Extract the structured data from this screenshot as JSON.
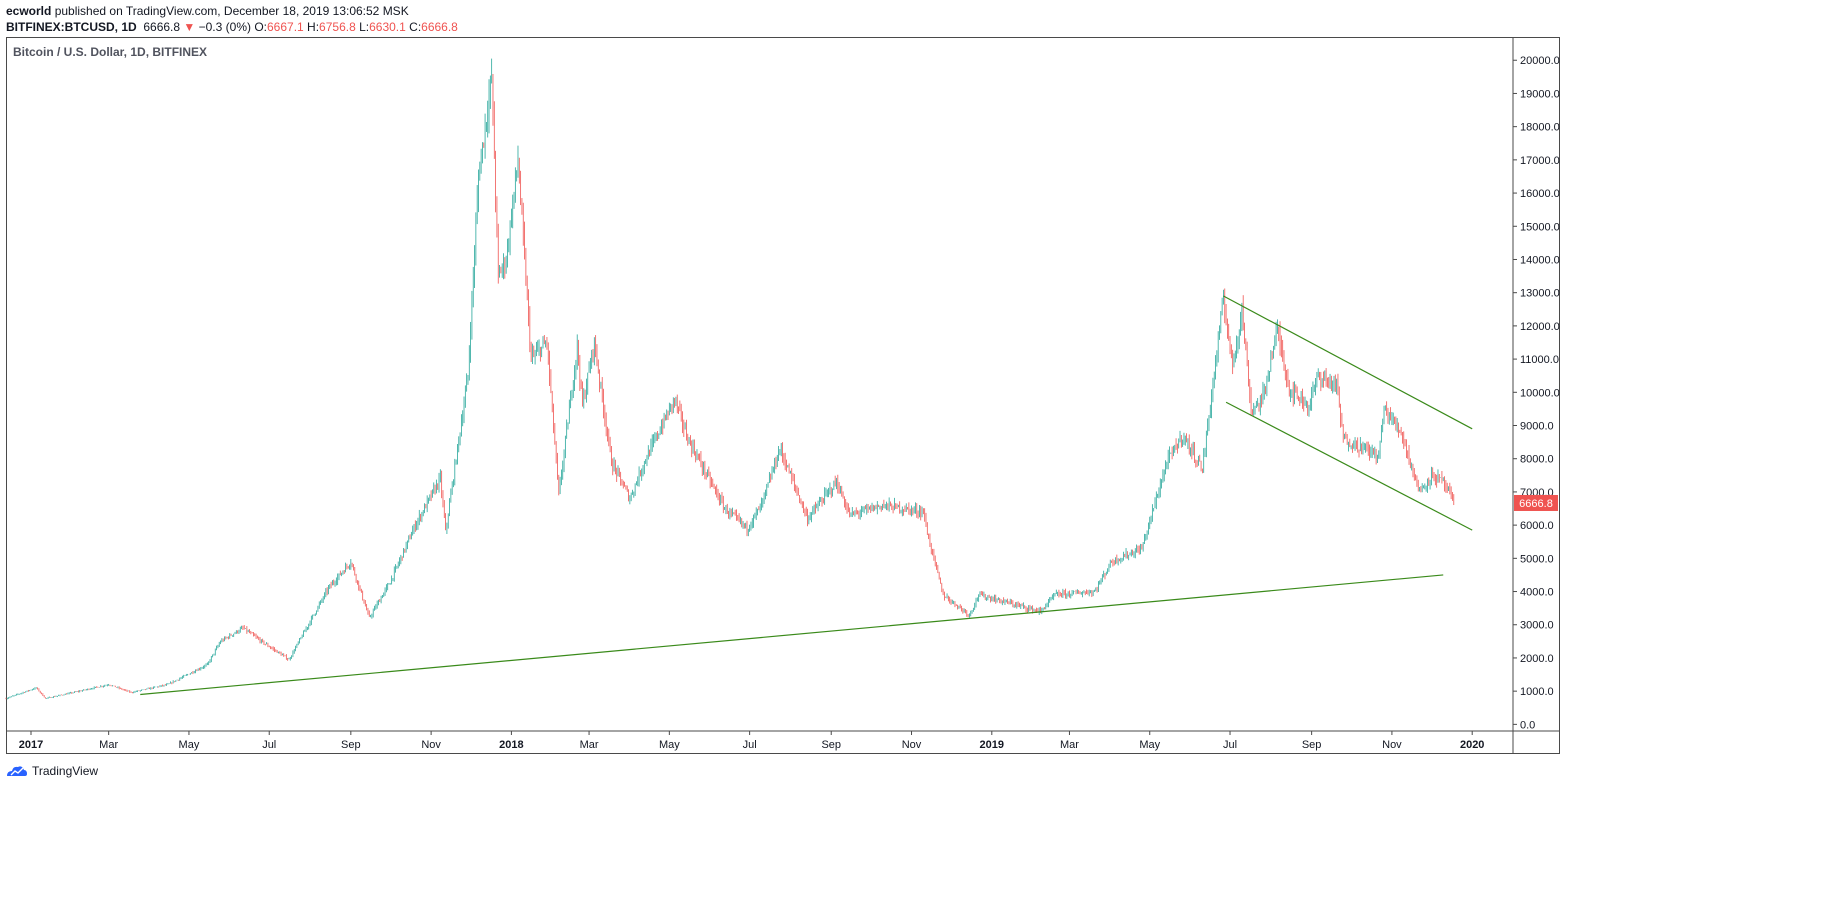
{
  "header": {
    "author": "ecworld",
    "published": " published on TradingView.com, December 18, 2019 13:06:52 MSK",
    "symbol": "BITFINEX:BTCUSD, 1D",
    "last": "6666.8",
    "arrow": "▼",
    "change": "−0.3 (0%)",
    "o_label": "O:",
    "o_value": "6667.1",
    "h_label": "H:",
    "h_value": "6756.8",
    "l_label": "L:",
    "l_value": "6630.1",
    "c_label": "C:",
    "c_value": "6666.8"
  },
  "footer": {
    "brand": "TradingView"
  },
  "colors": {
    "up": "#26a69a",
    "down": "#ef5350",
    "trendline": "#3a8a1a",
    "price_tag": "#ef5350"
  },
  "chart_data": {
    "type": "candlestick",
    "title": "Bitcoin / U.S. Dollar, 1D, BITFINEX",
    "interval": "1D",
    "ylim": [
      -200,
      20700
    ],
    "y_ticks": [
      "20000.0",
      "19000.0",
      "18000.0",
      "17000.0",
      "16000.0",
      "15000.0",
      "14000.0",
      "13000.0",
      "12000.0",
      "11000.0",
      "10000.0",
      "9000.0",
      "8000.0",
      "7000.0",
      "6000.0",
      "5000.0",
      "4000.0",
      "3000.0",
      "2000.0",
      "1000.0",
      "0.0"
    ],
    "x_ticks": [
      {
        "label": "2017",
        "date": "2017-01-01",
        "bold": true
      },
      {
        "label": "Mar",
        "date": "2017-03-01"
      },
      {
        "label": "May",
        "date": "2017-05-01"
      },
      {
        "label": "Jul",
        "date": "2017-07-01"
      },
      {
        "label": "Sep",
        "date": "2017-09-01"
      },
      {
        "label": "Nov",
        "date": "2017-11-01"
      },
      {
        "label": "2018",
        "date": "2018-01-01",
        "bold": true
      },
      {
        "label": "Mar",
        "date": "2018-03-01"
      },
      {
        "label": "May",
        "date": "2018-05-01"
      },
      {
        "label": "Jul",
        "date": "2018-07-01"
      },
      {
        "label": "Sep",
        "date": "2018-09-01"
      },
      {
        "label": "Nov",
        "date": "2018-11-01"
      },
      {
        "label": "2019",
        "date": "2019-01-01",
        "bold": true
      },
      {
        "label": "Mar",
        "date": "2019-03-01"
      },
      {
        "label": "May",
        "date": "2019-05-01"
      },
      {
        "label": "Jul",
        "date": "2019-07-01"
      },
      {
        "label": "Sep",
        "date": "2019-09-01"
      },
      {
        "label": "Nov",
        "date": "2019-11-01"
      },
      {
        "label": "2020",
        "date": "2020-01-01",
        "bold": true
      }
    ],
    "x_range": [
      "2016-12-13",
      "2020-02-01"
    ],
    "last_price": "6666.8",
    "price_path": [
      [
        "2016-12-13",
        780
      ],
      [
        "2017-01-05",
        1100
      ],
      [
        "2017-01-12",
        780
      ],
      [
        "2017-02-01",
        950
      ],
      [
        "2017-03-01",
        1200
      ],
      [
        "2017-03-18",
        960
      ],
      [
        "2017-04-15",
        1200
      ],
      [
        "2017-05-15",
        1800
      ],
      [
        "2017-05-25",
        2500
      ],
      [
        "2017-06-11",
        2900
      ],
      [
        "2017-06-25",
        2500
      ],
      [
        "2017-07-16",
        1950
      ],
      [
        "2017-07-25",
        2600
      ],
      [
        "2017-08-15",
        4100
      ],
      [
        "2017-09-01",
        4900
      ],
      [
        "2017-09-15",
        3200
      ],
      [
        "2017-10-01",
        4300
      ],
      [
        "2017-10-20",
        6000
      ],
      [
        "2017-11-08",
        7400
      ],
      [
        "2017-11-12",
        5800
      ],
      [
        "2017-11-29",
        10500
      ],
      [
        "2017-12-07",
        16500
      ],
      [
        "2017-12-17",
        19500
      ],
      [
        "2017-12-22",
        13500
      ],
      [
        "2017-12-28",
        14000
      ],
      [
        "2018-01-06",
        17000
      ],
      [
        "2018-01-16",
        11000
      ],
      [
        "2018-01-28",
        11500
      ],
      [
        "2018-02-06",
        6900
      ],
      [
        "2018-02-20",
        11400
      ],
      [
        "2018-02-24",
        9600
      ],
      [
        "2018-03-05",
        11500
      ],
      [
        "2018-03-18",
        7900
      ],
      [
        "2018-04-01",
        6800
      ],
      [
        "2018-04-12",
        7900
      ],
      [
        "2018-05-05",
        9800
      ],
      [
        "2018-05-15",
        8600
      ],
      [
        "2018-06-12",
        6500
      ],
      [
        "2018-06-29",
        5900
      ],
      [
        "2018-07-10",
        6600
      ],
      [
        "2018-07-24",
        8300
      ],
      [
        "2018-08-14",
        6200
      ],
      [
        "2018-09-05",
        7300
      ],
      [
        "2018-09-15",
        6300
      ],
      [
        "2018-10-10",
        6600
      ],
      [
        "2018-11-10",
        6400
      ],
      [
        "2018-11-14",
        5600
      ],
      [
        "2018-11-25",
        3900
      ],
      [
        "2018-12-15",
        3300
      ],
      [
        "2018-12-22",
        3900
      ],
      [
        "2019-01-10",
        3700
      ],
      [
        "2019-02-07",
        3400
      ],
      [
        "2019-02-18",
        3900
      ],
      [
        "2019-03-20",
        4000
      ],
      [
        "2019-04-02",
        4900
      ],
      [
        "2019-04-25",
        5300
      ],
      [
        "2019-05-14",
        7900
      ],
      [
        "2019-05-26",
        8700
      ],
      [
        "2019-06-10",
        7700
      ],
      [
        "2019-06-26",
        12800
      ],
      [
        "2019-07-03",
        10800
      ],
      [
        "2019-07-10",
        12500
      ],
      [
        "2019-07-17",
        9500
      ],
      [
        "2019-07-25",
        9700
      ],
      [
        "2019-08-06",
        11900
      ],
      [
        "2019-08-15",
        10100
      ],
      [
        "2019-08-30",
        9600
      ],
      [
        "2019-09-06",
        10500
      ],
      [
        "2019-09-20",
        10200
      ],
      [
        "2019-09-25",
        8600
      ],
      [
        "2019-10-22",
        8100
      ],
      [
        "2019-10-26",
        9500
      ],
      [
        "2019-11-08",
        8800
      ],
      [
        "2019-11-22",
        7000
      ],
      [
        "2019-12-01",
        7500
      ],
      [
        "2019-12-10",
        7300
      ],
      [
        "2019-12-18",
        6666.8
      ]
    ],
    "trendlines": [
      {
        "name": "long-term-support",
        "from": [
          "2017-03-25",
          900
        ],
        "to": [
          "2019-12-10",
          4500
        ]
      },
      {
        "name": "channel-upper",
        "from": [
          "2019-06-26",
          12900
        ],
        "to": [
          "2020-01-01",
          8900
        ]
      },
      {
        "name": "channel-lower",
        "from": [
          "2019-06-28",
          9700
        ],
        "to": [
          "2020-01-01",
          5850
        ]
      }
    ]
  }
}
